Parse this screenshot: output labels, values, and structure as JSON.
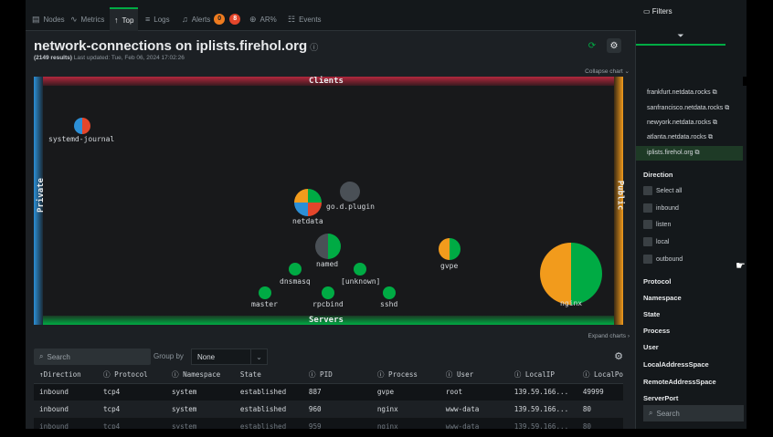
{
  "tabs": [
    {
      "label": "Nodes",
      "icon": "nodes-icon"
    },
    {
      "label": "Metrics",
      "icon": "metrics-icon"
    },
    {
      "label": "Top",
      "icon": "top-icon",
      "active": true
    },
    {
      "label": "Logs",
      "icon": "logs-icon"
    },
    {
      "label": "Alerts",
      "icon": "bell-icon",
      "badge_warning": "0",
      "badge_critical": "8"
    },
    {
      "label": "AR%",
      "icon": "anomaly-icon"
    },
    {
      "label": "Events",
      "icon": "events-icon"
    }
  ],
  "header": {
    "title": "network-connections on iplists.firehol.org",
    "results": "(2149 results)",
    "updated": "Last updated: Tue, Feb 06, 2024 17:02:26"
  },
  "chart_controls": {
    "collapse": "Collapse chart",
    "expand": "Expand charts"
  },
  "chart_data": {
    "type": "network-map",
    "edges": {
      "top": "Clients",
      "bottom": "Servers",
      "left": "Private",
      "right": "Public"
    },
    "nodes": [
      {
        "name": "systemd-journal",
        "colors": [
          "#e4462b",
          "#2c8fd6"
        ]
      },
      {
        "name": "netdata",
        "colors": [
          "#00ab44",
          "#e4462b",
          "#2c8fd6",
          "#f29b1c"
        ]
      },
      {
        "name": "go.d.plugin",
        "colors": [
          "#4a5056"
        ]
      },
      {
        "name": "named",
        "colors": [
          "#00ab44",
          "#4a5056"
        ]
      },
      {
        "name": "gvpe",
        "colors": [
          "#00ab44",
          "#f29b1c"
        ]
      },
      {
        "name": "dnsmasq",
        "colors": [
          "#00ab44"
        ]
      },
      {
        "name": "[unknown]",
        "colors": [
          "#00ab44"
        ]
      },
      {
        "name": "master",
        "colors": [
          "#00ab44"
        ]
      },
      {
        "name": "rpcbind",
        "colors": [
          "#00ab44"
        ]
      },
      {
        "name": "sshd",
        "colors": [
          "#00ab44"
        ]
      },
      {
        "name": "nginx",
        "colors": [
          "#00ab44",
          "#f29b1c"
        ]
      }
    ]
  },
  "toolbar": {
    "search_placeholder": "Search",
    "group_by_label": "Group by",
    "group_by_value": "None"
  },
  "table": {
    "columns": [
      "↑Direction",
      "Protocol",
      "Namespace",
      "State",
      "PID",
      "Process",
      "User",
      "LocalIP",
      "LocalPo"
    ],
    "rows": [
      [
        "inbound",
        "tcp4",
        "system",
        "established",
        "887",
        "gvpe",
        "root",
        "139.59.166...",
        "49999"
      ],
      [
        "inbound",
        "tcp4",
        "system",
        "established",
        "960",
        "nginx",
        "www-data",
        "139.59.166...",
        "80"
      ],
      [
        "inbound",
        "tcp4",
        "system",
        "established",
        "959",
        "nginx",
        "www-data",
        "139.59.166...",
        "80"
      ]
    ]
  },
  "sidebar": {
    "title": "Filters",
    "links": [
      "frankfurt.netdata.rocks",
      "sanfrancisco.netdata.rocks",
      "newyork.netdata.rocks",
      "atlanta.netdata.rocks",
      "iplists.firehol.org"
    ],
    "direction_title": "Direction",
    "direction_options": [
      "Select all",
      "inbound",
      "listen",
      "local",
      "outbound"
    ],
    "sections": [
      "Protocol",
      "Namespace",
      "State",
      "Process",
      "User",
      "LocalAddressSpace",
      "RemoteAddressSpace",
      "ServerPort"
    ],
    "search_placeholder": "Search"
  },
  "colors": {
    "accent": "#00ab44",
    "warning": "#f29b1c",
    "critical": "#e4462b",
    "private": "#2c8fd6"
  }
}
